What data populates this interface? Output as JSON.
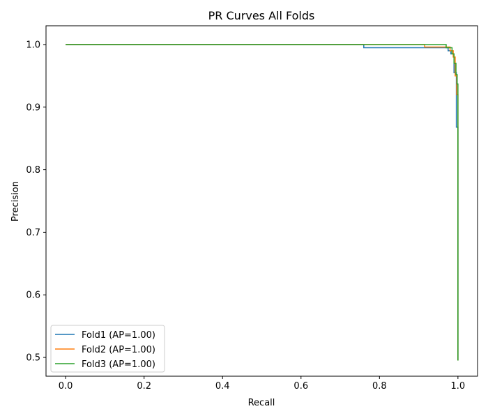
{
  "chart_data": {
    "type": "line",
    "title": "PR Curves All Folds",
    "xlabel": "Recall",
    "ylabel": "Precision",
    "xlim": [
      -0.05,
      1.05
    ],
    "ylim": [
      0.47,
      1.03
    ],
    "xticks": [
      0.0,
      0.2,
      0.4,
      0.6,
      0.8,
      1.0
    ],
    "xtick_labels": [
      "0.0",
      "0.2",
      "0.4",
      "0.6",
      "0.8",
      "1.0"
    ],
    "yticks": [
      0.5,
      0.6,
      0.7,
      0.8,
      0.9,
      1.0
    ],
    "ytick_labels": [
      "0.5",
      "0.6",
      "0.7",
      "0.8",
      "0.9",
      "1.0"
    ],
    "grid": false,
    "legend_position": "lower-left",
    "series": [
      {
        "name": "Fold1 (AP=1.00)",
        "color": "#1f77b4",
        "x": [
          0.0,
          0.76,
          0.76,
          0.975,
          0.975,
          0.982,
          0.982,
          0.99,
          0.99,
          0.996,
          0.996,
          1.0,
          1.0
        ],
        "y": [
          1.0,
          1.0,
          0.995,
          0.995,
          0.99,
          0.99,
          0.985,
          0.985,
          0.955,
          0.955,
          0.868,
          0.868,
          0.495
        ]
      },
      {
        "name": "Fold2 (AP=1.00)",
        "color": "#ff7f0e",
        "x": [
          0.0,
          0.915,
          0.915,
          0.98,
          0.98,
          0.988,
          0.988,
          0.993,
          0.993,
          0.997,
          0.997,
          1.0,
          1.0
        ],
        "y": [
          1.0,
          1.0,
          0.996,
          0.996,
          0.99,
          0.99,
          0.98,
          0.98,
          0.95,
          0.95,
          0.92,
          0.92,
          0.495
        ]
      },
      {
        "name": "Fold3 (AP=1.00)",
        "color": "#2ca02c",
        "x": [
          0.0,
          0.97,
          0.97,
          0.985,
          0.985,
          0.99,
          0.99,
          0.995,
          0.995,
          0.998,
          0.998,
          1.0,
          1.0
        ],
        "y": [
          1.0,
          1.0,
          0.995,
          0.995,
          0.985,
          0.985,
          0.97,
          0.97,
          0.952,
          0.952,
          0.937,
          0.937,
          0.495
        ]
      }
    ]
  }
}
